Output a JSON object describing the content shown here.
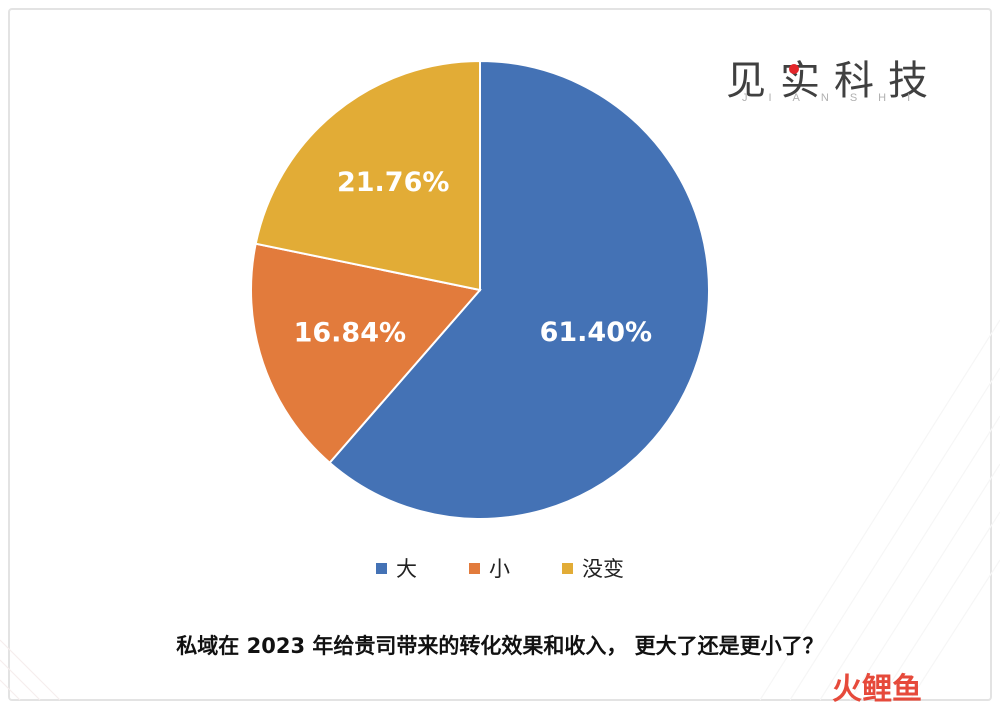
{
  "brand": {
    "title": "见实科技",
    "subtitle": "JIANSHI"
  },
  "chart_data": {
    "type": "pie",
    "categories": [
      "大",
      "小",
      "没变"
    ],
    "values": [
      61.4,
      16.84,
      21.76
    ],
    "labels": [
      "61.40%",
      "16.84%",
      "21.76%"
    ],
    "colors": [
      "#4472b5",
      "#e27b3c",
      "#e2ac36"
    ],
    "start_angle_deg": 0,
    "direction": "clockwise",
    "legend_position": "bottom",
    "title": ""
  },
  "caption": "私域在 2023 年给贵司带来的转化效果和收入，  更大了还是更小了？",
  "watermark": "火鲤鱼"
}
